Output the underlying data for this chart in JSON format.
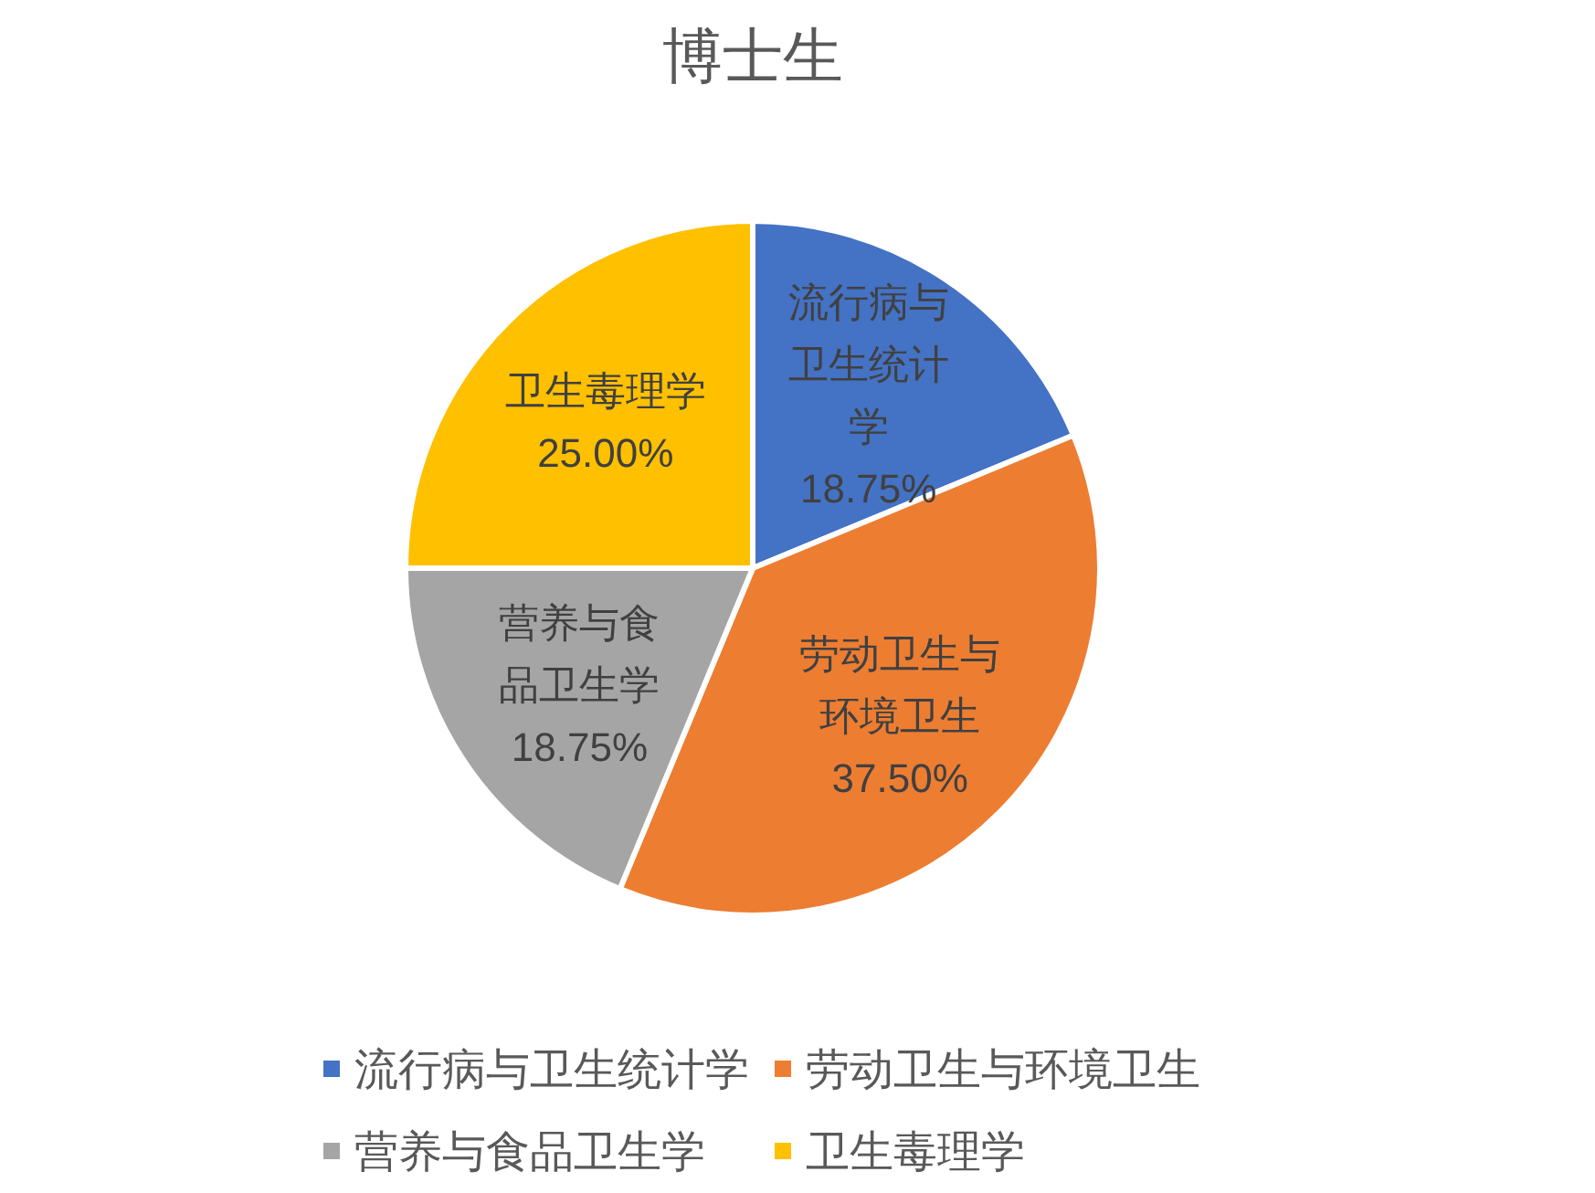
{
  "chart_data": {
    "type": "pie",
    "title": "博士生",
    "categories": [
      "流行病与卫生统计学",
      "劳动卫生与环境卫生",
      "营养与食品卫生学",
      "卫生毒理学"
    ],
    "values": [
      18.75,
      37.5,
      18.75,
      25
    ],
    "colors": [
      "#4472c4",
      "#ed7d31",
      "#a5a5a5",
      "#ffc000"
    ],
    "value_labels": [
      "18.75%",
      "37.50%",
      "18.75%",
      "25.00%"
    ],
    "legend": "bottom"
  }
}
